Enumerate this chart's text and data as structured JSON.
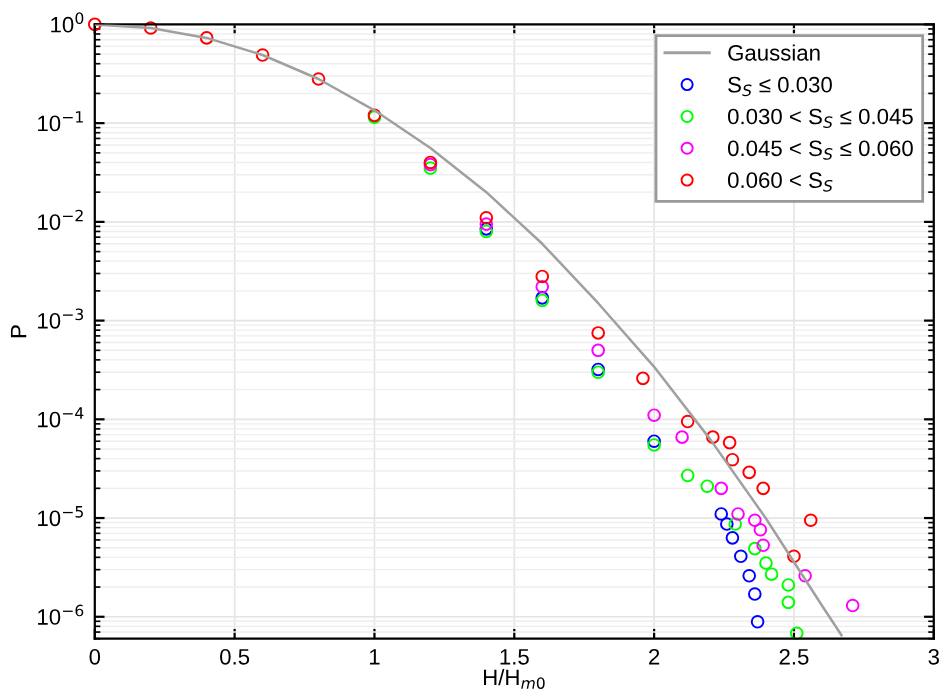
{
  "chart_data": {
    "type": "scatter",
    "xlabel": "H/H$_{m0}$",
    "ylabel": "P",
    "log": "y",
    "grid": true,
    "legend": "top right",
    "marker": "circle",
    "xlim": [
      0,
      3
    ],
    "xticks": [
      0,
      0.5,
      1,
      1.5,
      2,
      2.5,
      3
    ],
    "ylim": [
      6e-07,
      1
    ],
    "yticks": [
      {
        "value": 1,
        "label": "10$^{0}$"
      },
      {
        "value": 0.1,
        "label": "10$^{−1}$"
      },
      {
        "value": 0.01,
        "label": "10$^{−2}$"
      },
      {
        "value": 0.001,
        "label": "10$^{−3}$"
      },
      {
        "value": 0.0001,
        "label": "10$^{−4}$"
      },
      {
        "value": 1e-05,
        "label": "10$^{−5}$"
      },
      {
        "value": 1e-06,
        "label": "10$^{−6}$"
      }
    ],
    "series": [
      {
        "name": "Gaussian",
        "type": "line",
        "marker": "none",
        "color": "#a0a0a0",
        "x": [
          0,
          0.2,
          0.4,
          0.6,
          0.8,
          1.0,
          1.2,
          1.4,
          1.6,
          1.8,
          2.0,
          2.2,
          2.4,
          2.6,
          2.67
        ],
        "values": [
          1,
          0.92,
          0.73,
          0.49,
          0.28,
          0.135,
          0.056,
          0.02,
          0.006,
          0.0015,
          0.00034,
          6.3e-05,
          9.9e-06,
          1.3e-06,
          6.5e-07
        ]
      },
      {
        "name": "S$_{S}$ ≤ 0.030",
        "color": "#0000ff",
        "x": [
          1.4,
          1.6,
          1.8,
          2.0,
          2.24,
          2.26,
          2.28,
          2.31,
          2.34,
          2.36,
          2.37
        ],
        "values": [
          0.0085,
          0.0017,
          0.00032,
          6e-05,
          1.1e-05,
          8.7e-06,
          6.3e-06,
          4.1e-06,
          2.6e-06,
          1.7e-06,
          8.9e-07
        ]
      },
      {
        "name": "0.030 < S$_{S}$ ≤ 0.045",
        "color": "#00ff00",
        "x": [
          1.0,
          1.2,
          1.4,
          1.6,
          1.8,
          2.0,
          2.12,
          2.19,
          2.29,
          2.36,
          2.4,
          2.42,
          2.48,
          2.48,
          2.51
        ],
        "values": [
          0.115,
          0.035,
          0.008,
          0.0016,
          0.0003,
          5.5e-05,
          2.7e-05,
          2.1e-05,
          8.7e-06,
          4.9e-06,
          3.5e-06,
          2.7e-06,
          2.1e-06,
          1.4e-06,
          6.8e-07
        ]
      },
      {
        "name": "0.045 < S$_{S}$ ≤ 0.060",
        "color": "#ff00ff",
        "x": [
          1.2,
          1.4,
          1.6,
          1.8,
          2.0,
          2.1,
          2.24,
          2.3,
          2.36,
          2.38,
          2.39,
          2.54,
          2.71
        ],
        "values": [
          0.038,
          0.0095,
          0.0022,
          0.0005,
          0.00011,
          6.6e-05,
          2e-05,
          1.1e-05,
          9.5e-06,
          7.6e-06,
          5.3e-06,
          2.6e-06,
          1.3e-06
        ]
      },
      {
        "name": "0.060 < S$_{S}$",
        "color": "#ff0000",
        "x": [
          0,
          0.2,
          0.4,
          0.6,
          0.8,
          1.0,
          1.2,
          1.4,
          1.6,
          1.8,
          1.96,
          2.12,
          2.21,
          2.27,
          2.28,
          2.34,
          2.39,
          2.5,
          2.56
        ],
        "values": [
          1,
          0.92,
          0.73,
          0.49,
          0.28,
          0.12,
          0.04,
          0.011,
          0.0028,
          0.00075,
          0.00026,
          9.5e-05,
          6.6e-05,
          5.8e-05,
          3.9e-05,
          2.9e-05,
          2e-05,
          4.1e-06,
          9.5e-06
        ]
      }
    ]
  }
}
